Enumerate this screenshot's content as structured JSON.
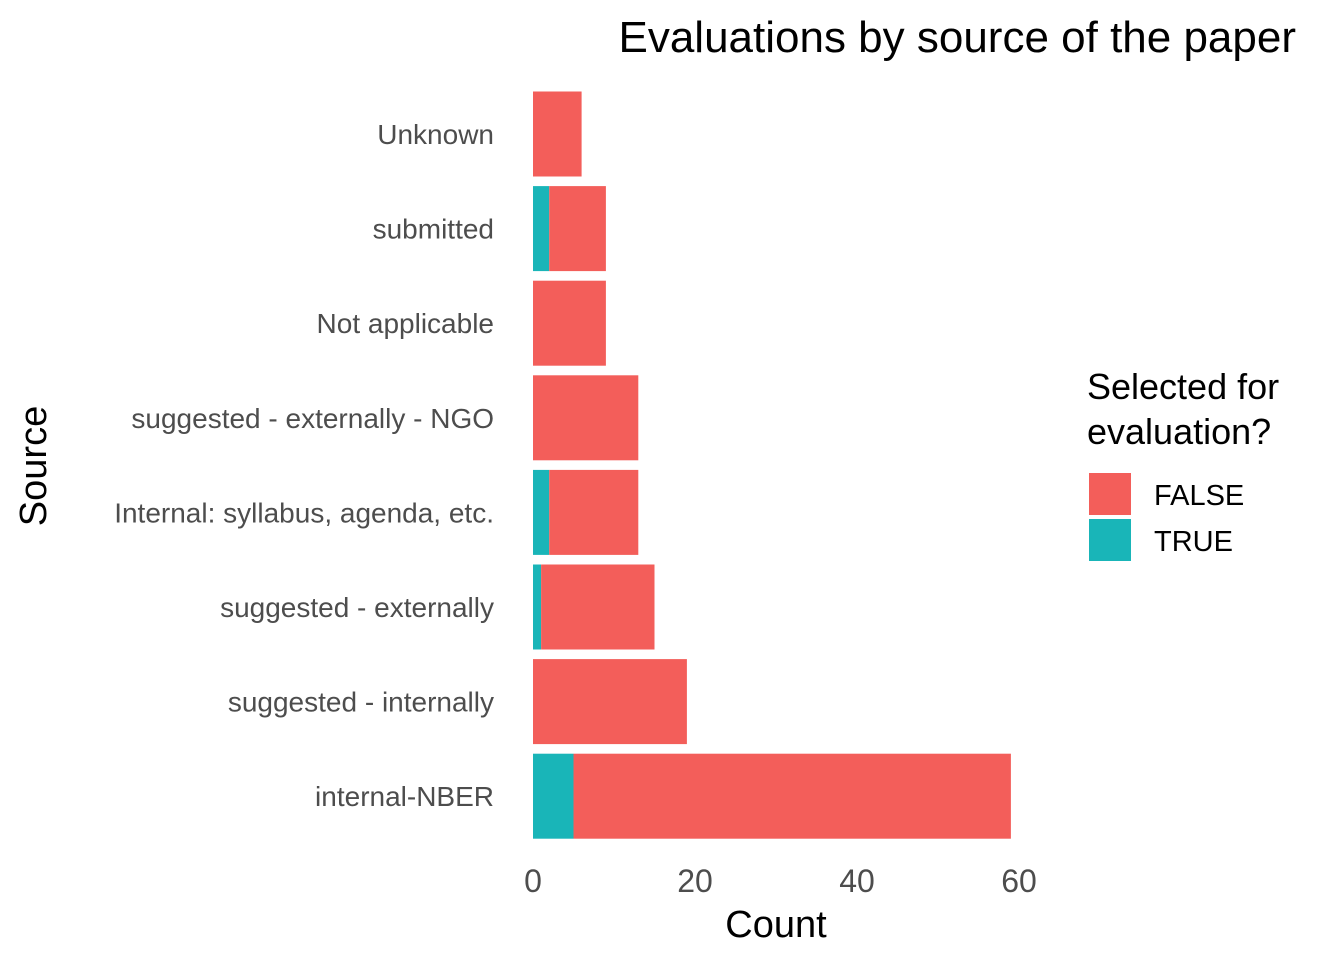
{
  "chart_data": {
    "type": "bar",
    "orientation": "horizontal",
    "stacked": true,
    "title": "Evaluations by source of the paper",
    "xlabel": "Count",
    "ylabel": "Source",
    "xlim": [
      0,
      62
    ],
    "xticks": [
      0,
      20,
      40,
      60
    ],
    "grid": false,
    "legend_position": "right",
    "legend_title_lines": [
      "Selected for",
      "evaluation?"
    ],
    "categories": [
      "Unknown",
      "submitted",
      "Not applicable",
      "suggested - externally - NGO",
      "Internal: syllabus, agenda, etc.",
      "suggested - externally",
      "suggested - internally",
      "internal-NBER"
    ],
    "series": [
      {
        "name": "TRUE",
        "color": "#19b5b8",
        "values": [
          0,
          2,
          0,
          0,
          2,
          1,
          0,
          5
        ]
      },
      {
        "name": "FALSE",
        "color": "#f35e5a",
        "values": [
          6,
          7,
          9,
          13,
          11,
          14,
          19,
          54
        ]
      }
    ],
    "legend_order": [
      "FALSE",
      "TRUE"
    ]
  }
}
